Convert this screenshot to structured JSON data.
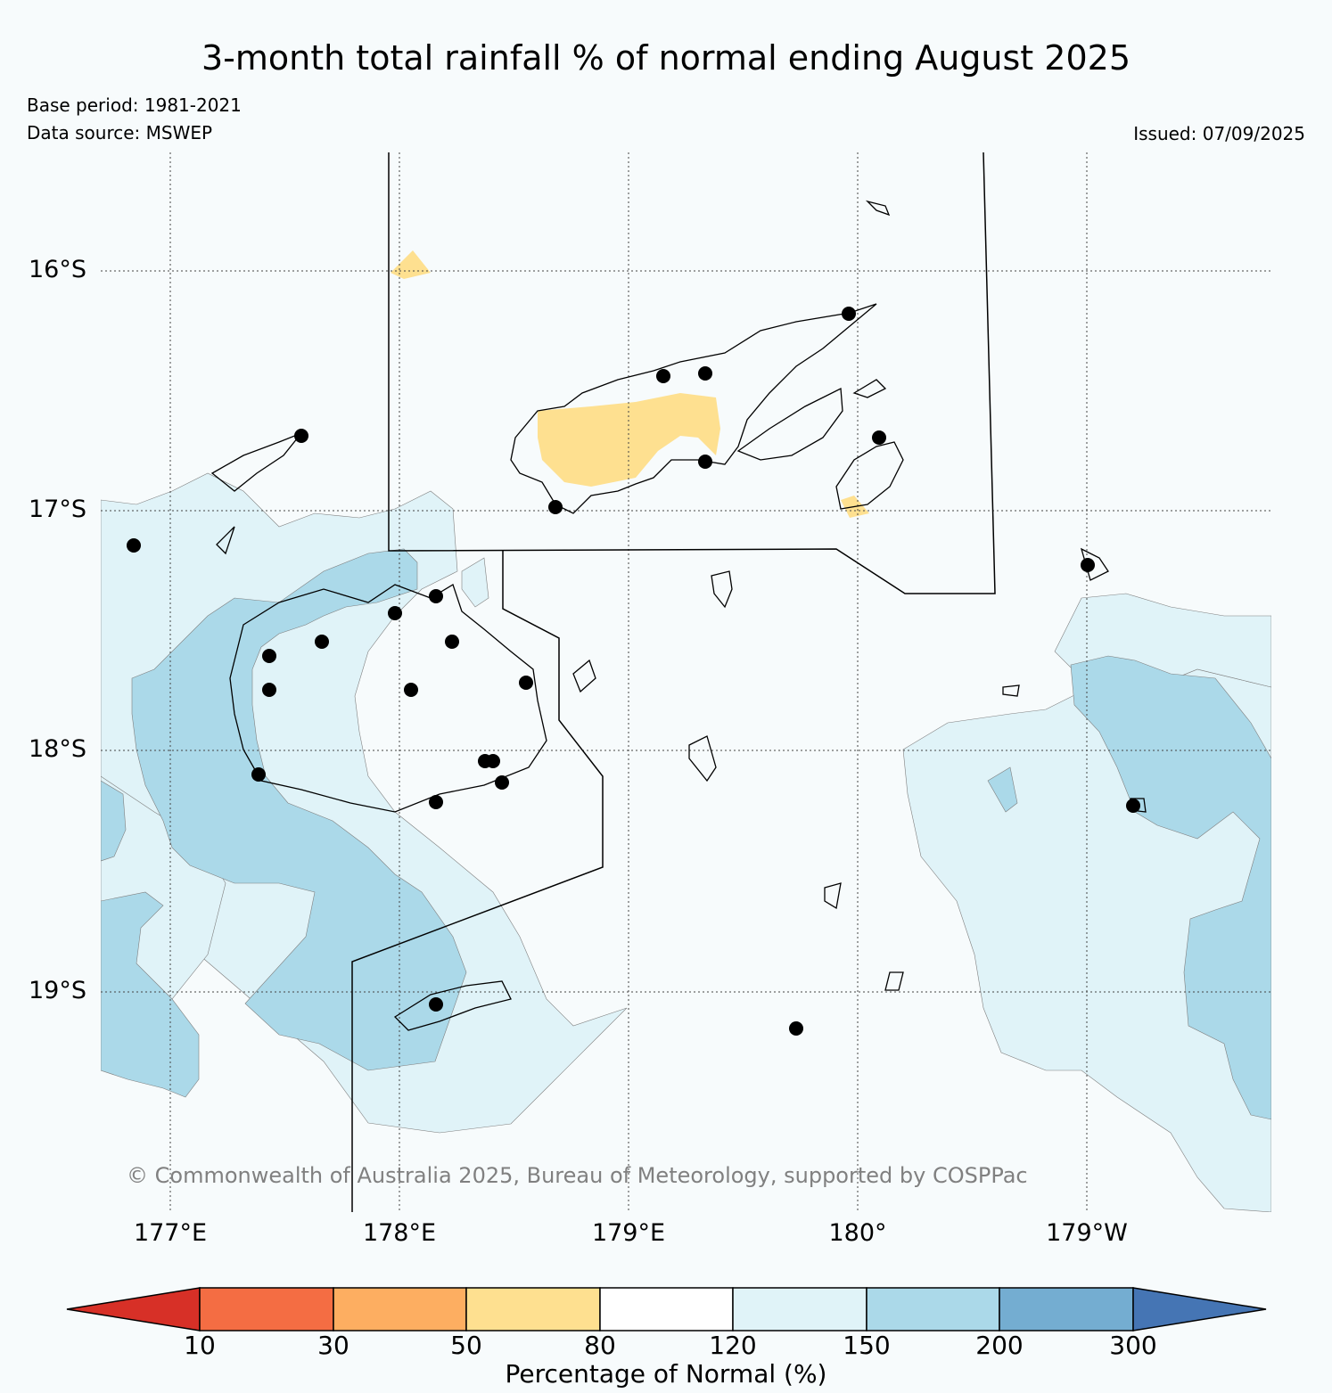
{
  "title": "3-month total rainfall % of normal ending August 2025",
  "base_period": "Base period: 1981-2021",
  "data_source": "Data source: MSWEP",
  "issued": "Issued: 07/09/2025",
  "copyright": "© Commonwealth of Australia 2025, Bureau of Meteorology, supported by COSPPac",
  "map": {
    "lat_labels": [
      "16°S",
      "17°S",
      "18°S",
      "19°S"
    ],
    "lon_labels": [
      "177°E",
      "178°E",
      "179°E",
      "180°",
      "179°W"
    ],
    "station_count": 25
  },
  "colorbar": {
    "label": "Percentage of Normal (%)",
    "ticks": [
      "10",
      "30",
      "50",
      "80",
      "120",
      "150",
      "200",
      "300"
    ],
    "colors": [
      "#d73027",
      "#f46d43",
      "#fdae61",
      "#fee090",
      "#ffffff",
      "#e0f3f8",
      "#abd9e9",
      "#74add1",
      "#4575b4"
    ]
  }
}
